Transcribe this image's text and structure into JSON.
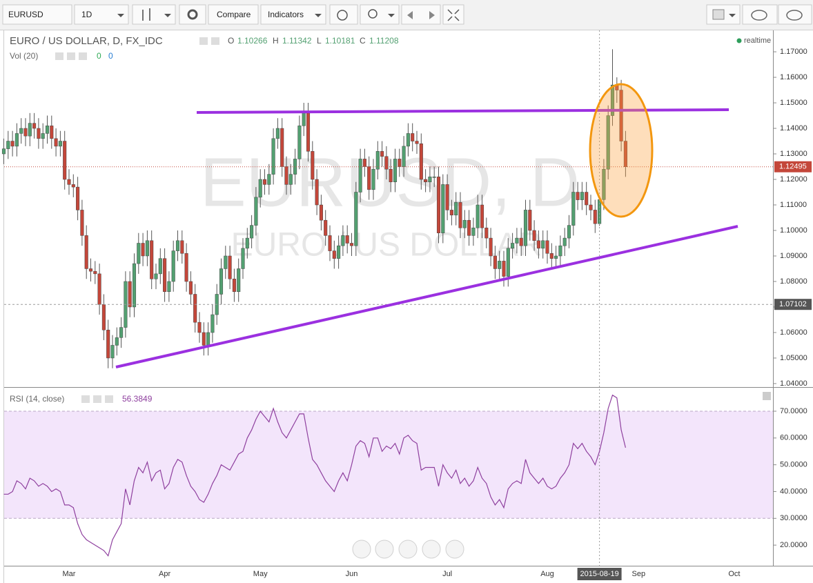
{
  "toolbar": {
    "symbol": "EURUSD",
    "interval": "1D",
    "compare": "Compare",
    "indicators": "Indicators"
  },
  "chart_data": [
    {
      "type": "candlestick",
      "title": "EURO / US DOLLAR, D, FX_IDC",
      "watermark": "EURUSD, D",
      "watermark_subtitle": "EURO / US DOLLAR",
      "ohlc_labels": [
        "O",
        "H",
        "L",
        "C"
      ],
      "status": "realtime",
      "volume_label": "Vol (20)",
      "volume_values": [
        0,
        0
      ],
      "up_color": "#53a071",
      "down_color": "#c4473a",
      "open": [
        1.13,
        1.132,
        1.135,
        1.133,
        1.138,
        1.14,
        1.137,
        1.142,
        1.14,
        1.136,
        1.138,
        1.141,
        1.136,
        1.133,
        1.135,
        1.12,
        1.118,
        1.117,
        1.108,
        1.098,
        1.085,
        1.084,
        1.083,
        1.071,
        1.061,
        1.05,
        1.055,
        1.058,
        1.062,
        1.08,
        1.07,
        1.087,
        1.095,
        1.09,
        1.096,
        1.081,
        1.083,
        1.089,
        1.076,
        1.08,
        1.092,
        1.096,
        1.091,
        1.08,
        1.075,
        1.064,
        1.06,
        1.055,
        1.06,
        1.067,
        1.075,
        1.085,
        1.09,
        1.081,
        1.076,
        1.085,
        1.093,
        1.097,
        1.102,
        1.113,
        1.12,
        1.118,
        1.122,
        1.136,
        1.14,
        1.125,
        1.118,
        1.122,
        1.128,
        1.141,
        1.146,
        1.131,
        1.12,
        1.11,
        1.104,
        1.098,
        1.092,
        1.089,
        1.094,
        1.098,
        1.095,
        1.094,
        1.115,
        1.128,
        1.125,
        1.116,
        1.124,
        1.131,
        1.129,
        1.124,
        1.119,
        1.128,
        1.125,
        1.133,
        1.138,
        1.135,
        1.134,
        1.12,
        1.119,
        1.121,
        1.121,
        1.099,
        1.118,
        1.108,
        1.106,
        1.111,
        1.101,
        1.104,
        1.098,
        1.101,
        1.11,
        1.101,
        1.097,
        1.09,
        1.085,
        1.088,
        1.082,
        1.093,
        1.095,
        1.097,
        1.094,
        1.108,
        1.1,
        1.096,
        1.093,
        1.096,
        1.091,
        1.089,
        1.09,
        1.094,
        1.097,
        1.102,
        1.115,
        1.112,
        1.115,
        1.11,
        1.108,
        1.10266,
        1.11208,
        1.124,
        1.145,
        1.157,
        1.155,
        1.135
      ],
      "high": [
        1.136,
        1.139,
        1.139,
        1.142,
        1.144,
        1.144,
        1.146,
        1.146,
        1.144,
        1.142,
        1.145,
        1.145,
        1.14,
        1.139,
        1.139,
        1.124,
        1.122,
        1.121,
        1.112,
        1.102,
        1.089,
        1.088,
        1.087,
        1.075,
        1.065,
        1.059,
        1.062,
        1.066,
        1.084,
        1.084,
        1.091,
        1.099,
        1.099,
        1.1,
        1.1,
        1.087,
        1.093,
        1.093,
        1.084,
        1.096,
        1.1,
        1.1,
        1.095,
        1.084,
        1.079,
        1.068,
        1.064,
        1.064,
        1.071,
        1.079,
        1.089,
        1.094,
        1.094,
        1.085,
        1.089,
        1.097,
        1.101,
        1.106,
        1.117,
        1.124,
        1.124,
        1.126,
        1.14,
        1.144,
        1.144,
        1.129,
        1.126,
        1.132,
        1.145,
        1.15,
        1.15,
        1.135,
        1.124,
        1.114,
        1.108,
        1.102,
        1.096,
        1.098,
        1.102,
        1.102,
        1.099,
        1.119,
        1.132,
        1.132,
        1.129,
        1.128,
        1.135,
        1.135,
        1.133,
        1.128,
        1.132,
        1.132,
        1.137,
        1.142,
        1.142,
        1.139,
        1.138,
        1.124,
        1.125,
        1.125,
        1.125,
        1.122,
        1.122,
        1.112,
        1.115,
        1.115,
        1.108,
        1.108,
        1.105,
        1.114,
        1.114,
        1.105,
        1.101,
        1.094,
        1.092,
        1.092,
        1.097,
        1.099,
        1.101,
        1.101,
        1.112,
        1.112,
        1.104,
        1.1,
        1.1,
        1.1,
        1.095,
        1.094,
        1.098,
        1.101,
        1.106,
        1.119,
        1.119,
        1.119,
        1.119,
        1.114,
        1.112,
        1.11342,
        1.128,
        1.149,
        1.171,
        1.16,
        1.159,
        1.139
      ],
      "low": [
        1.126,
        1.128,
        1.129,
        1.129,
        1.134,
        1.133,
        1.133,
        1.136,
        1.132,
        1.132,
        1.134,
        1.132,
        1.129,
        1.129,
        1.116,
        1.114,
        1.113,
        1.104,
        1.094,
        1.081,
        1.08,
        1.079,
        1.067,
        1.057,
        1.046,
        1.046,
        1.051,
        1.054,
        1.058,
        1.066,
        1.066,
        1.083,
        1.086,
        1.086,
        1.077,
        1.077,
        1.079,
        1.072,
        1.072,
        1.076,
        1.088,
        1.087,
        1.076,
        1.071,
        1.06,
        1.056,
        1.051,
        1.051,
        1.056,
        1.063,
        1.071,
        1.081,
        1.077,
        1.072,
        1.072,
        1.081,
        1.089,
        1.093,
        1.098,
        1.109,
        1.114,
        1.114,
        1.118,
        1.132,
        1.121,
        1.114,
        1.114,
        1.118,
        1.124,
        1.137,
        1.127,
        1.116,
        1.106,
        1.1,
        1.094,
        1.088,
        1.085,
        1.085,
        1.09,
        1.091,
        1.09,
        1.09,
        1.111,
        1.121,
        1.112,
        1.112,
        1.12,
        1.125,
        1.12,
        1.115,
        1.115,
        1.121,
        1.121,
        1.129,
        1.131,
        1.13,
        1.116,
        1.115,
        1.115,
        1.117,
        1.095,
        1.095,
        1.104,
        1.102,
        1.102,
        1.097,
        1.097,
        1.094,
        1.094,
        1.097,
        1.097,
        1.093,
        1.086,
        1.081,
        1.081,
        1.078,
        1.078,
        1.089,
        1.091,
        1.09,
        1.09,
        1.096,
        1.092,
        1.089,
        1.089,
        1.087,
        1.085,
        1.085,
        1.086,
        1.09,
        1.093,
        1.098,
        1.108,
        1.108,
        1.106,
        1.104,
        1.099,
        1.10181,
        1.108,
        1.12,
        1.141,
        1.15,
        1.131,
        1.121
      ],
      "close": [
        1.132,
        1.135,
        1.133,
        1.138,
        1.14,
        1.137,
        1.142,
        1.14,
        1.136,
        1.138,
        1.141,
        1.136,
        1.133,
        1.135,
        1.12,
        1.118,
        1.117,
        1.108,
        1.098,
        1.085,
        1.084,
        1.083,
        1.071,
        1.061,
        1.05,
        1.055,
        1.058,
        1.062,
        1.08,
        1.07,
        1.087,
        1.095,
        1.09,
        1.096,
        1.081,
        1.083,
        1.089,
        1.076,
        1.08,
        1.092,
        1.096,
        1.091,
        1.08,
        1.075,
        1.064,
        1.06,
        1.055,
        1.06,
        1.067,
        1.075,
        1.085,
        1.09,
        1.081,
        1.076,
        1.085,
        1.093,
        1.097,
        1.102,
        1.113,
        1.12,
        1.118,
        1.122,
        1.136,
        1.14,
        1.125,
        1.118,
        1.122,
        1.128,
        1.141,
        1.146,
        1.131,
        1.12,
        1.11,
        1.104,
        1.098,
        1.092,
        1.089,
        1.094,
        1.098,
        1.095,
        1.094,
        1.115,
        1.128,
        1.125,
        1.116,
        1.124,
        1.131,
        1.129,
        1.124,
        1.119,
        1.128,
        1.125,
        1.133,
        1.138,
        1.135,
        1.134,
        1.12,
        1.119,
        1.121,
        1.121,
        1.099,
        1.118,
        1.108,
        1.106,
        1.111,
        1.101,
        1.104,
        1.098,
        1.101,
        1.11,
        1.101,
        1.097,
        1.09,
        1.085,
        1.088,
        1.082,
        1.093,
        1.095,
        1.097,
        1.094,
        1.108,
        1.1,
        1.096,
        1.093,
        1.096,
        1.091,
        1.089,
        1.09,
        1.094,
        1.097,
        1.102,
        1.115,
        1.112,
        1.115,
        1.11,
        1.108,
        1.10266,
        1.11208,
        1.124,
        1.145,
        1.157,
        1.155,
        1.135,
        1.12495
      ],
      "ylim": [
        1.0389,
        1.1784
      ],
      "yticks": [
        {
          "value": 1.04,
          "label": "1.04000"
        },
        {
          "value": 1.05,
          "label": "1.05000"
        },
        {
          "value": 1.06,
          "label": "1.06000"
        },
        {
          "value": 1.07,
          "label": "1.07000"
        },
        {
          "value": 1.08,
          "label": "1.08000"
        },
        {
          "value": 1.09,
          "label": "1.09000"
        },
        {
          "value": 1.1,
          "label": "1.10000"
        },
        {
          "value": 1.11,
          "label": "1.11000"
        },
        {
          "value": 1.12,
          "label": "1.12000"
        },
        {
          "value": 1.13,
          "label": "1.13000"
        },
        {
          "value": 1.14,
          "label": "1.14000"
        },
        {
          "value": 1.15,
          "label": "1.15000"
        },
        {
          "value": 1.16,
          "label": "1.16000"
        },
        {
          "value": 1.17,
          "label": "1.17000"
        }
      ],
      "crosshair_price": 1.07102,
      "crosshair_date": "2015-08-19"
    },
    {
      "type": "line",
      "title": "RSI (14, close)",
      "color": "#8e3f9e",
      "band": [
        30,
        70
      ],
      "categories": [
        null,
        null,
        null,
        null,
        null,
        null,
        null,
        null,
        null,
        null,
        null,
        null,
        null,
        null,
        null,
        "Mar",
        null,
        null,
        null,
        null,
        null,
        null,
        null,
        null,
        null,
        null,
        null,
        null,
        null,
        null,
        null,
        null,
        null,
        null,
        null,
        null,
        null,
        "Apr",
        null,
        null,
        null,
        null,
        null,
        null,
        null,
        null,
        null,
        null,
        null,
        null,
        null,
        null,
        null,
        null,
        null,
        null,
        null,
        null,
        null,
        "May",
        null,
        null,
        null,
        null,
        null,
        null,
        null,
        null,
        null,
        null,
        null,
        null,
        null,
        null,
        null,
        null,
        null,
        null,
        null,
        null,
        "Jun",
        null,
        null,
        null,
        null,
        null,
        null,
        null,
        null,
        null,
        null,
        null,
        null,
        null,
        null,
        null,
        null,
        null,
        null,
        null,
        null,
        null,
        "Jul",
        null,
        null,
        null,
        null,
        null,
        null,
        null,
        null,
        null,
        null,
        null,
        null,
        null,
        null,
        null,
        null,
        null,
        null,
        null,
        null,
        null,
        null,
        "Aug",
        null,
        null,
        null,
        null,
        null,
        null,
        null,
        null,
        null,
        null,
        null,
        null,
        null,
        null,
        null,
        null,
        null,
        null,
        null,
        null,
        "Sep",
        null,
        null,
        null,
        null,
        null,
        null,
        null,
        null,
        null,
        null,
        null,
        null,
        null,
        null,
        null,
        null,
        null,
        null,
        null,
        null,
        null,
        "Oct",
        null,
        null,
        null,
        null,
        null,
        null,
        null,
        null
      ],
      "values": [
        39,
        39,
        40,
        44,
        43,
        41,
        45,
        44,
        42,
        43,
        42,
        40,
        41,
        40,
        35,
        35,
        34,
        28,
        24,
        22,
        21,
        20,
        19,
        18,
        16,
        22,
        25,
        28,
        41,
        35,
        44,
        49,
        47,
        51,
        44,
        47,
        48,
        41,
        43,
        49,
        52,
        51,
        46,
        42,
        40,
        37,
        36,
        39,
        43,
        46,
        50,
        49,
        48,
        51,
        54,
        55,
        60,
        63,
        67,
        70,
        68,
        66,
        71,
        66,
        62,
        60,
        63,
        66,
        69,
        69,
        60,
        52,
        50,
        47,
        44,
        42,
        40,
        44,
        47,
        44,
        50,
        57,
        59,
        58,
        53,
        60,
        60,
        55,
        57,
        56,
        58,
        54,
        60,
        61,
        59,
        58,
        48,
        49,
        49,
        49,
        42,
        50,
        47,
        45,
        48,
        43,
        45,
        42,
        44,
        49,
        45,
        43,
        38,
        35,
        37,
        34,
        41,
        43,
        44,
        43,
        52,
        47,
        45,
        43,
        45,
        42,
        41,
        42,
        45,
        47,
        50,
        58,
        56,
        58,
        55,
        53,
        50,
        55,
        62,
        71,
        76,
        75,
        63,
        56.3849,
        null,
        null,
        null,
        null,
        null,
        null,
        null,
        null,
        null,
        null,
        null,
        null,
        null,
        null,
        null,
        null,
        null,
        null,
        null,
        null,
        null,
        null,
        null,
        null,
        null,
        null,
        null,
        null,
        null,
        null,
        null,
        null,
        null
      ],
      "ylim": [
        12.3,
        78.5
      ],
      "yticks": [
        {
          "value": 20,
          "label": "20.0000"
        },
        {
          "value": 30,
          "label": "30.0000"
        },
        {
          "value": 40,
          "label": "40.0000"
        },
        {
          "value": 50,
          "label": "50.0000"
        },
        {
          "value": 60,
          "label": "60.0000"
        },
        {
          "value": 70,
          "label": "70.0000"
        }
      ]
    }
  ]
}
